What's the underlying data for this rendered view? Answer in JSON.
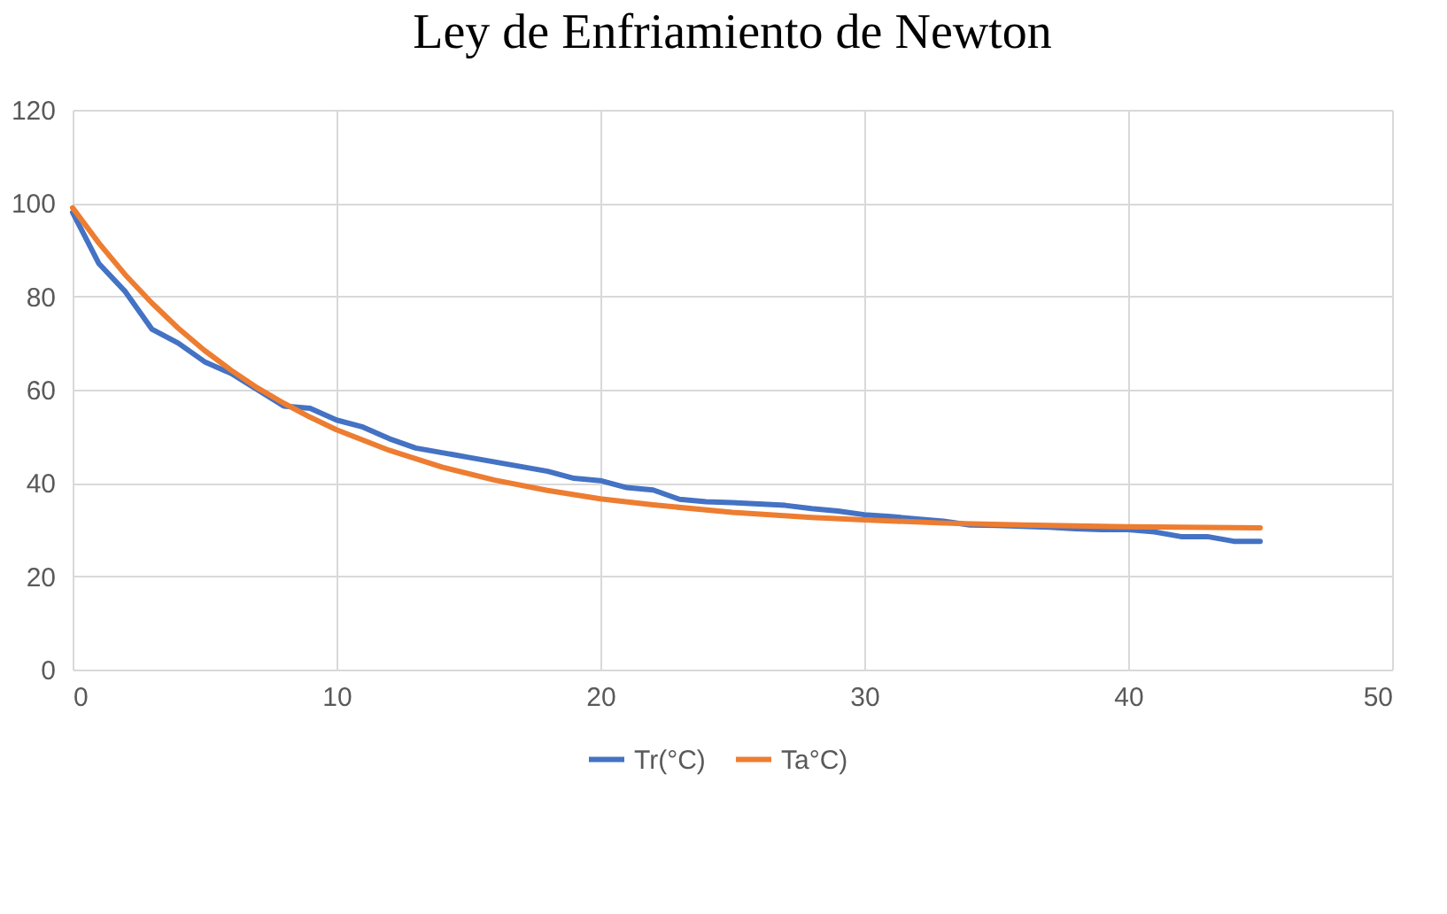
{
  "chart_data": {
    "type": "line",
    "title": "Ley de Enfriamiento de Newton",
    "series": [
      {
        "name": "Tr(°C)",
        "color": "#4472c4",
        "x": [
          0,
          1,
          2,
          3,
          4,
          5,
          6,
          7,
          8,
          9,
          10,
          11,
          12,
          13,
          14,
          15,
          16,
          17,
          18,
          19,
          20,
          21,
          22,
          23,
          24,
          25,
          26,
          27,
          28,
          29,
          30,
          31,
          32,
          33,
          34,
          35,
          36,
          37,
          38,
          39,
          40,
          41,
          42,
          43,
          44,
          45
        ],
        "values": [
          98,
          87,
          81,
          73,
          70,
          66,
          63.5,
          60,
          56.5,
          56,
          53.5,
          52,
          49.5,
          47.5,
          46.5,
          45.5,
          44.5,
          43.5,
          42.5,
          41,
          40.5,
          39,
          38.5,
          36.5,
          36,
          35.8,
          35.5,
          35.2,
          34.5,
          34,
          33.2,
          32.8,
          32.3,
          31.8,
          31,
          30.9,
          30.7,
          30.5,
          30.2,
          30,
          30,
          29.5,
          28.5,
          28.5,
          27.5,
          27.5
        ]
      },
      {
        "name": "Ta°C)",
        "color": "#ed7d31",
        "x": [
          0,
          1,
          2,
          3,
          4,
          5,
          6,
          7,
          8,
          9,
          10,
          12,
          14,
          16,
          18,
          20,
          22,
          25,
          28,
          30,
          33,
          36,
          40,
          45
        ],
        "values": [
          99,
          91.4,
          84.6,
          78.6,
          73.2,
          68.4,
          64.2,
          60.4,
          57.1,
          54.1,
          51.4,
          47,
          43.4,
          40.6,
          38.4,
          36.6,
          35.3,
          33.7,
          32.6,
          32.1,
          31.4,
          31,
          30.6,
          30.4
        ]
      }
    ],
    "xlim": [
      0,
      50
    ],
    "xticks": [
      0,
      10,
      20,
      30,
      40,
      50
    ],
    "ylim": [
      0,
      120
    ],
    "yticks": [
      0,
      20,
      40,
      60,
      80,
      100,
      120
    ],
    "grid": true,
    "legend": "bottom",
    "marker": "none",
    "line_style": "solid"
  }
}
